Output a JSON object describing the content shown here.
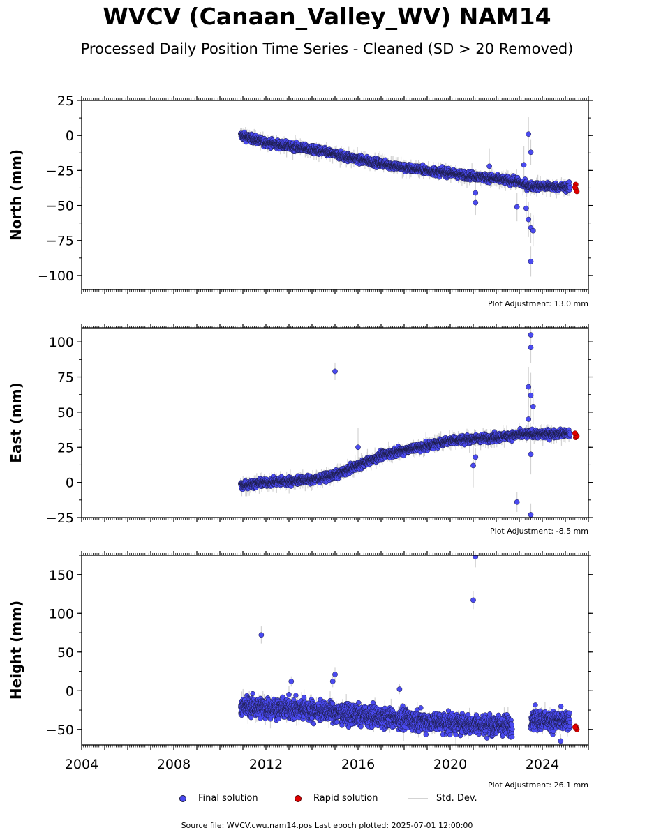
{
  "title": "WVCV (Canaan_Valley_WV) NAM14",
  "subtitle": "Processed Daily Position Time Series - Cleaned (SD > 20 Removed)",
  "legend": {
    "final": "Final solution",
    "rapid": "Rapid solution",
    "std": "Std. Dev."
  },
  "footer": "Source file: WVCV.cwu.nam14.pos  Last epoch plotted: 2025-07-01 12:00:00",
  "colors": {
    "final": "#4a4af0",
    "rapid": "#e00000",
    "std": "#d3d3d3",
    "edge": "#1a1a40"
  },
  "chart_data": [
    {
      "type": "scatter",
      "ylabel": "North (mm)",
      "adjustment": "Plot Adjustment: 13.0 mm",
      "xlim": [
        2004,
        2026
      ],
      "ylim": [
        -110,
        25
      ],
      "yticks": [
        25,
        0,
        -25,
        -50,
        -75,
        -100
      ],
      "ytick_labels": [
        "25",
        "0",
        "−25",
        "−50",
        "−75",
        "−100"
      ],
      "trend": [
        [
          2010.9,
          0
        ],
        [
          2012,
          -5
        ],
        [
          2014,
          -10
        ],
        [
          2016,
          -17
        ],
        [
          2018,
          -23
        ],
        [
          2020,
          -27
        ],
        [
          2022,
          -31
        ],
        [
          2022.9,
          -33
        ],
        [
          2023.4,
          -36
        ],
        [
          2025.2,
          -37
        ]
      ],
      "scatter_sd": 2,
      "outliers": [
        [
          2023.4,
          1
        ],
        [
          2023.5,
          -12
        ],
        [
          2023.5,
          -90
        ],
        [
          2023.5,
          -66
        ],
        [
          2023.6,
          -68
        ],
        [
          2023.3,
          -52
        ],
        [
          2023.4,
          -60
        ],
        [
          2021.1,
          -48
        ],
        [
          2021.1,
          -41
        ],
        [
          2022.9,
          -51
        ],
        [
          2021.7,
          -22
        ],
        [
          2023.2,
          -21
        ]
      ],
      "rapid": [
        [
          2025.45,
          -35
        ],
        [
          2025.45,
          -38
        ],
        [
          2025.5,
          -40
        ],
        [
          2025.42,
          -37
        ]
      ]
    },
    {
      "type": "scatter",
      "ylabel": "East (mm)",
      "adjustment": "Plot Adjustment: -8.5 mm",
      "xlim": [
        2004,
        2026
      ],
      "ylim": [
        -25,
        110
      ],
      "yticks": [
        100,
        75,
        50,
        25,
        0,
        -25
      ],
      "ytick_labels": [
        "100",
        "75",
        "50",
        "25",
        "0",
        "−25"
      ],
      "trend": [
        [
          2010.9,
          -2
        ],
        [
          2012,
          0
        ],
        [
          2014,
          2
        ],
        [
          2015,
          5
        ],
        [
          2016,
          12
        ],
        [
          2017,
          19
        ],
        [
          2018,
          23
        ],
        [
          2019,
          26
        ],
        [
          2020,
          30
        ],
        [
          2022,
          32
        ],
        [
          2023,
          34
        ],
        [
          2025.2,
          35
        ]
      ],
      "scatter_sd": 2,
      "outliers": [
        [
          2015,
          79
        ],
        [
          2023.5,
          105
        ],
        [
          2023.5,
          96
        ],
        [
          2023.4,
          68
        ],
        [
          2023.5,
          62
        ],
        [
          2023.4,
          45
        ],
        [
          2023.6,
          54
        ],
        [
          2022.9,
          -14
        ],
        [
          2023.5,
          -23
        ],
        [
          2021,
          12
        ],
        [
          2021.1,
          18
        ],
        [
          2016,
          25
        ],
        [
          2023.5,
          20
        ]
      ],
      "rapid": [
        [
          2025.45,
          34
        ],
        [
          2025.45,
          32
        ],
        [
          2025.5,
          33
        ],
        [
          2025.42,
          35
        ]
      ]
    },
    {
      "type": "scatter",
      "ylabel": "Height (mm)",
      "adjustment": "Plot Adjustment: 26.1 mm",
      "xlim": [
        2004,
        2026
      ],
      "ylim": [
        -70,
        175
      ],
      "yticks": [
        150,
        100,
        50,
        0,
        -50
      ],
      "ytick_labels": [
        "150",
        "100",
        "50",
        "0",
        "−50"
      ],
      "xticks": [
        2004,
        2008,
        2012,
        2016,
        2020,
        2024
      ],
      "xtick_labels": [
        "2004",
        "2008",
        "2012",
        "2016",
        "2020",
        "2024"
      ],
      "trend": [
        [
          2010.9,
          -20
        ],
        [
          2012,
          -22
        ],
        [
          2014,
          -25
        ],
        [
          2016,
          -32
        ],
        [
          2018,
          -37
        ],
        [
          2020,
          -42
        ],
        [
          2022.7,
          -45
        ]
      ],
      "trend2": [
        [
          2023.5,
          -36
        ],
        [
          2024,
          -38
        ],
        [
          2025.2,
          -40
        ]
      ],
      "scatter_sd": 9,
      "outliers": [
        [
          2011.8,
          72
        ],
        [
          2021,
          117
        ],
        [
          2021.1,
          173
        ],
        [
          2015,
          21
        ],
        [
          2014.9,
          12
        ],
        [
          2013.1,
          12
        ],
        [
          2017.8,
          2
        ],
        [
          2013,
          -5
        ],
        [
          2024.8,
          -65
        ]
      ],
      "rapid": [
        [
          2025.45,
          -46
        ],
        [
          2025.5,
          -50
        ],
        [
          2025.45,
          -48
        ],
        [
          2025.42,
          -47
        ]
      ]
    }
  ]
}
